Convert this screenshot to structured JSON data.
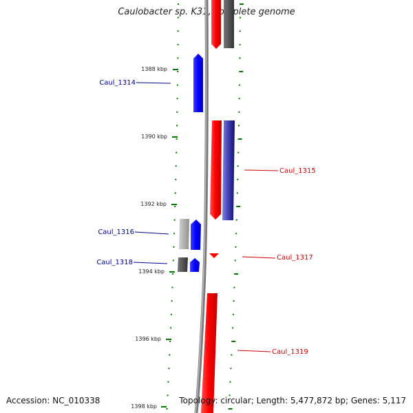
{
  "title": "Caulobacter sp. K31, complete genome",
  "accession": "Accession: NC_010338",
  "topology": "Topology: circular; Length: 5,477,872 bp; Genes: 5,117",
  "colors": {
    "forward": "#ff0000",
    "reverse": "#0000ff",
    "ruler": "#007700",
    "backbone": "#808080",
    "label_reverse": "#00008b",
    "label_forward": "#cc0000"
  },
  "kbp_ticks": [
    "1388 kbp",
    "1390 kbp",
    "1392 kbp",
    "1394 kbp",
    "1396 kbp",
    "1398 kbp"
  ],
  "gene_labels": [
    {
      "id": "Caul_1314",
      "strand": "reverse"
    },
    {
      "id": "Caul_1315",
      "strand": "forward"
    },
    {
      "id": "Caul_1316",
      "strand": "reverse"
    },
    {
      "id": "Caul_1317",
      "strand": "forward"
    },
    {
      "id": "Caul_1318",
      "strand": "reverse"
    },
    {
      "id": "Caul_1319",
      "strand": "forward"
    }
  ]
}
